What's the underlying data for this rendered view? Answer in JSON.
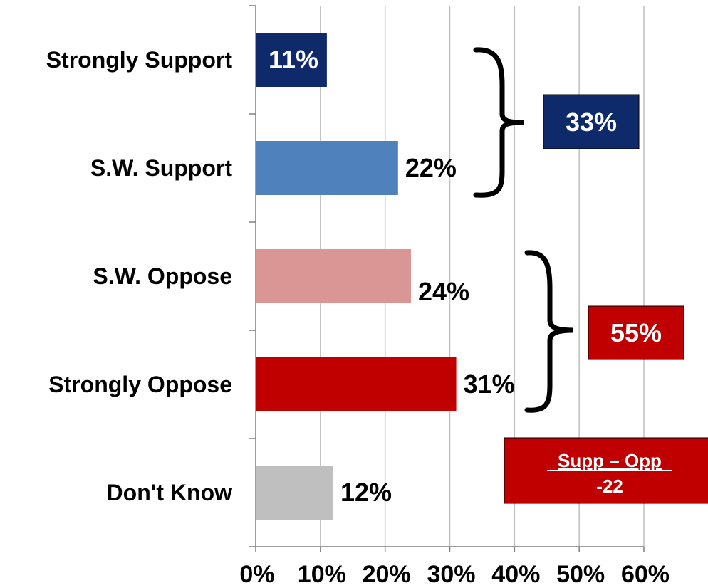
{
  "chart_data": {
    "type": "bar",
    "orientation": "horizontal",
    "categories": [
      "Strongly Support",
      "S.W. Support",
      "S.W. Oppose",
      "Strongly Oppose",
      "Don't Know"
    ],
    "values": [
      11,
      22,
      24,
      31,
      12
    ],
    "value_labels": [
      "11%",
      "22%",
      "24%",
      "31%",
      "12%"
    ],
    "colors": [
      "#0f2a6b",
      "#4f81bd",
      "#d99694",
      "#c00000",
      "#bfbfbf"
    ],
    "xlim": [
      0,
      60
    ],
    "xticks": [
      0,
      10,
      20,
      30,
      40,
      50,
      60
    ],
    "xtick_labels": [
      "0%",
      "10%",
      "20%",
      "30%",
      "40%",
      "50%",
      "60%"
    ],
    "grid": "vertical",
    "annotations": {
      "support_total": {
        "label": "33%",
        "color": "#0f2a6b"
      },
      "oppose_total": {
        "label": "55%",
        "color": "#c00000"
      },
      "difference": {
        "title": "Supp – Opp",
        "value": "-22",
        "color": "#c00000"
      }
    }
  }
}
